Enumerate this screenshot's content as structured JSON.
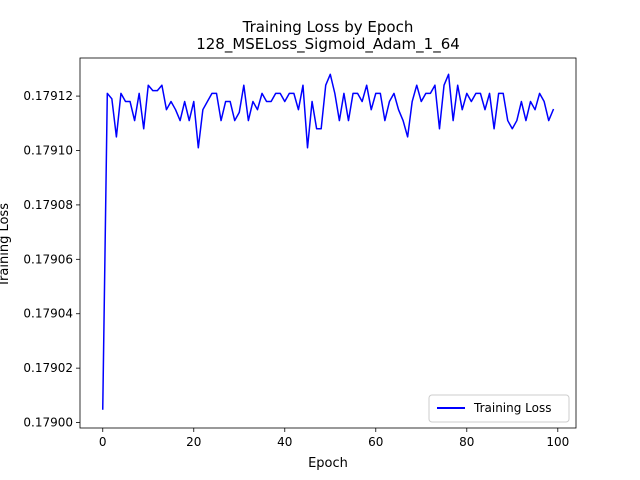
{
  "chart_data": {
    "type": "line",
    "title": "Training Loss by Epoch",
    "subtitle": "128_MSELoss_Sigmoid_Adam_1_64",
    "xlabel": "Epoch",
    "ylabel": "Training Loss",
    "xlim": [
      -5,
      104
    ],
    "ylim": [
      0.178998,
      0.179134
    ],
    "xticks": [
      0,
      20,
      40,
      60,
      80,
      100
    ],
    "yticks": [
      0.179,
      0.17902,
      0.17904,
      0.17906,
      0.17908,
      0.1791,
      0.17912
    ],
    "ytick_labels": [
      "0.17900",
      "0.17902",
      "0.17904",
      "0.17906",
      "0.17908",
      "0.17910",
      "0.17912"
    ],
    "xtick_labels": [
      "0",
      "20",
      "40",
      "60",
      "80",
      "100"
    ],
    "grid": false,
    "legend_position": "lower-right",
    "series": [
      {
        "name": "Training Loss",
        "color": "#0000ff",
        "x": [
          0,
          1,
          2,
          3,
          4,
          5,
          6,
          7,
          8,
          9,
          10,
          11,
          12,
          13,
          14,
          15,
          16,
          17,
          18,
          19,
          20,
          21,
          22,
          23,
          24,
          25,
          26,
          27,
          28,
          29,
          30,
          31,
          32,
          33,
          34,
          35,
          36,
          37,
          38,
          39,
          40,
          41,
          42,
          43,
          44,
          45,
          46,
          47,
          48,
          49,
          50,
          51,
          52,
          53,
          54,
          55,
          56,
          57,
          58,
          59,
          60,
          61,
          62,
          63,
          64,
          65,
          66,
          67,
          68,
          69,
          70,
          71,
          72,
          73,
          74,
          75,
          76,
          77,
          78,
          79,
          80,
          81,
          82,
          83,
          84,
          85,
          86,
          87,
          88,
          89,
          90,
          91,
          92,
          93,
          94,
          95,
          96,
          97,
          98,
          99
        ],
        "values": [
          0.179005,
          0.179121,
          0.179119,
          0.179105,
          0.179121,
          0.179118,
          0.179118,
          0.179111,
          0.179121,
          0.179108,
          0.179124,
          0.179122,
          0.179122,
          0.179124,
          0.179115,
          0.179118,
          0.179115,
          0.179111,
          0.179118,
          0.179111,
          0.179118,
          0.179101,
          0.179115,
          0.179118,
          0.179121,
          0.179121,
          0.179111,
          0.179118,
          0.179118,
          0.179111,
          0.179114,
          0.179124,
          0.179111,
          0.179118,
          0.179115,
          0.179121,
          0.179118,
          0.179118,
          0.179121,
          0.179121,
          0.179118,
          0.179121,
          0.179121,
          0.179115,
          0.179124,
          0.179101,
          0.179118,
          0.179108,
          0.179108,
          0.179124,
          0.179128,
          0.179121,
          0.179111,
          0.179121,
          0.179111,
          0.179121,
          0.179121,
          0.179118,
          0.179124,
          0.179115,
          0.179121,
          0.179121,
          0.179111,
          0.179118,
          0.179121,
          0.179115,
          0.179111,
          0.179105,
          0.179118,
          0.179124,
          0.179118,
          0.179121,
          0.179121,
          0.179124,
          0.179108,
          0.179124,
          0.179128,
          0.179111,
          0.179124,
          0.179115,
          0.179121,
          0.179118,
          0.179121,
          0.179121,
          0.179115,
          0.179121,
          0.179108,
          0.179121,
          0.179121,
          0.179111,
          0.179108,
          0.179111,
          0.179118,
          0.179111,
          0.179118,
          0.179115,
          0.179121,
          0.179118,
          0.179111,
          0.179115
        ]
      }
    ]
  }
}
